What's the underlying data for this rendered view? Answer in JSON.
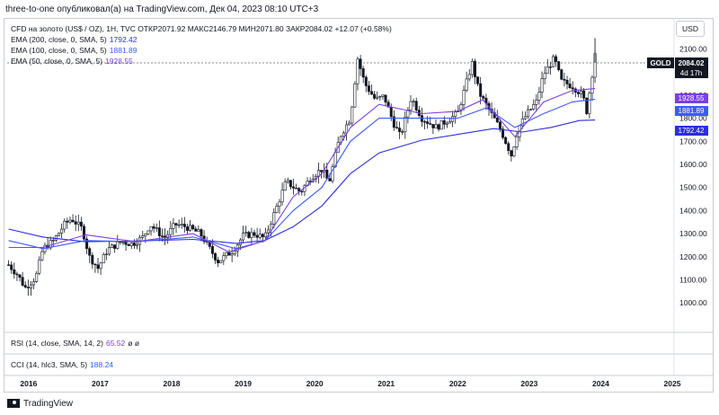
{
  "header": {
    "topline": "three-to-one опубликовал(а) на TradingView.com, Дек 04, 2023 08:10 UTC+3"
  },
  "legend": {
    "main": "CFD на золото (US$ / OZ), 1Н, TVC  ОТКР2071.92  МАКС2146.79  МИН2071.80  ЗАКР2084.02  +12.07 (+0.58%)",
    "ema200_label": "EMA (200, close, 0, SMA, 5)",
    "ema200_value": "1792.42",
    "ema100_label": "EMA (100, close, 0, SMA, 5)",
    "ema100_value": "1881.89",
    "ema50_label": "EMA (50, close, 0, SMA, 5)",
    "ema50_value": "1928.55",
    "rsi_label": "RSI (14, close, SMA, 14, 2)",
    "rsi_value": "65.52",
    "rsi_extra": "ø  ø",
    "cci_label": "CCI (14, hlc3, SMA, 5)",
    "cci_value": "188.24"
  },
  "currency_button": "USD",
  "price_tag": {
    "symbol": "GOLD",
    "price": "2084.02",
    "countdown": "4d 17h"
  },
  "footer": {
    "brand": "TradingView"
  },
  "colors": {
    "ema200": "#2a2ee0",
    "ema100": "#3d5afe",
    "ema50": "#7b3fe4",
    "candles": "#131722",
    "tag_bg": "#131722"
  },
  "chart_data": {
    "type": "candlestick",
    "title": "CFD на золото (US$ / OZ), 1Н, TVC",
    "ylim": [
      880,
      2180
    ],
    "y_ticks": [
      1000,
      1100,
      1200,
      1300,
      1400,
      1500,
      1600,
      1700,
      1800,
      1900,
      2000,
      2100
    ],
    "y_tick_labels": [
      "1000.00",
      "1100.00",
      "1200.00",
      "1300.00",
      "1400.00",
      "1500.00",
      "1600.00",
      "1700.00",
      "1800.00",
      "1900.00",
      "2000.00",
      "2100.00"
    ],
    "x_ticks": [
      "2016",
      "2017",
      "2018",
      "2019",
      "2020",
      "2021",
      "2022",
      "2023",
      "2024",
      "2025"
    ],
    "x_range": [
      2015.7,
      2025.0
    ],
    "close_path": [
      [
        2015.72,
        1165
      ],
      [
        2015.85,
        1120
      ],
      [
        2015.95,
        1065
      ],
      [
        2016.1,
        1110
      ],
      [
        2016.2,
        1235
      ],
      [
        2016.35,
        1270
      ],
      [
        2016.5,
        1340
      ],
      [
        2016.6,
        1365
      ],
      [
        2016.75,
        1320
      ],
      [
        2016.85,
        1200
      ],
      [
        2016.97,
        1150
      ],
      [
        2017.1,
        1230
      ],
      [
        2017.3,
        1265
      ],
      [
        2017.45,
        1255
      ],
      [
        2017.6,
        1285
      ],
      [
        2017.7,
        1340
      ],
      [
        2017.9,
        1280
      ],
      [
        2018.05,
        1340
      ],
      [
        2018.2,
        1330
      ],
      [
        2018.4,
        1300
      ],
      [
        2018.55,
        1225
      ],
      [
        2018.65,
        1180
      ],
      [
        2018.85,
        1225
      ],
      [
        2019.0,
        1290
      ],
      [
        2019.15,
        1300
      ],
      [
        2019.3,
        1280
      ],
      [
        2019.45,
        1400
      ],
      [
        2019.6,
        1525
      ],
      [
        2019.8,
        1480
      ],
      [
        2019.95,
        1545
      ],
      [
        2020.1,
        1580
      ],
      [
        2020.2,
        1520
      ],
      [
        2020.35,
        1720
      ],
      [
        2020.5,
        1800
      ],
      [
        2020.6,
        2060
      ],
      [
        2020.7,
        1950
      ],
      [
        2020.85,
        1880
      ],
      [
        2020.97,
        1895
      ],
      [
        2021.1,
        1780
      ],
      [
        2021.2,
        1720
      ],
      [
        2021.35,
        1890
      ],
      [
        2021.5,
        1800
      ],
      [
        2021.7,
        1760
      ],
      [
        2021.85,
        1790
      ],
      [
        2022.0,
        1820
      ],
      [
        2022.2,
        2040
      ],
      [
        2022.3,
        1910
      ],
      [
        2022.45,
        1830
      ],
      [
        2022.6,
        1750
      ],
      [
        2022.75,
        1640
      ],
      [
        2022.85,
        1760
      ],
      [
        2022.97,
        1820
      ],
      [
        2023.1,
        1870
      ],
      [
        2023.2,
        1990
      ],
      [
        2023.35,
        2060
      ],
      [
        2023.45,
        1960
      ],
      [
        2023.6,
        1940
      ],
      [
        2023.75,
        1900
      ],
      [
        2023.8,
        1825
      ],
      [
        2023.88,
        1990
      ],
      [
        2023.92,
        2084
      ]
    ],
    "series": [
      {
        "name": "EMA (200, close, 0, SMA, 5)",
        "last": 1792.42,
        "points": [
          [
            2015.72,
            1320
          ],
          [
            2016.2,
            1285
          ],
          [
            2016.8,
            1265
          ],
          [
            2017.5,
            1268
          ],
          [
            2018.3,
            1275
          ],
          [
            2018.9,
            1258
          ],
          [
            2019.3,
            1270
          ],
          [
            2019.7,
            1330
          ],
          [
            2020.1,
            1420
          ],
          [
            2020.5,
            1560
          ],
          [
            2020.9,
            1650
          ],
          [
            2021.5,
            1705
          ],
          [
            2022.0,
            1730
          ],
          [
            2022.5,
            1755
          ],
          [
            2022.9,
            1740
          ],
          [
            2023.3,
            1760
          ],
          [
            2023.7,
            1790
          ],
          [
            2023.92,
            1792.42
          ]
        ]
      },
      {
        "name": "EMA (100, close, 0, SMA, 5)",
        "last": 1881.89,
        "points": [
          [
            2015.72,
            1270
          ],
          [
            2016.2,
            1235
          ],
          [
            2016.8,
            1270
          ],
          [
            2017.5,
            1265
          ],
          [
            2018.3,
            1285
          ],
          [
            2018.9,
            1235
          ],
          [
            2019.3,
            1268
          ],
          [
            2019.7,
            1400
          ],
          [
            2020.1,
            1500
          ],
          [
            2020.5,
            1700
          ],
          [
            2020.9,
            1800
          ],
          [
            2021.5,
            1800
          ],
          [
            2022.0,
            1800
          ],
          [
            2022.4,
            1845
          ],
          [
            2022.8,
            1760
          ],
          [
            2023.2,
            1820
          ],
          [
            2023.6,
            1870
          ],
          [
            2023.92,
            1881.89
          ]
        ]
      },
      {
        "name": "EMA (50, close, 0, SMA, 5)",
        "last": 1928.55,
        "points": [
          [
            2015.72,
            1240
          ],
          [
            2016.2,
            1240
          ],
          [
            2016.8,
            1295
          ],
          [
            2017.5,
            1265
          ],
          [
            2018.3,
            1300
          ],
          [
            2018.8,
            1220
          ],
          [
            2019.3,
            1270
          ],
          [
            2019.7,
            1460
          ],
          [
            2020.1,
            1560
          ],
          [
            2020.5,
            1760
          ],
          [
            2020.9,
            1860
          ],
          [
            2021.5,
            1820
          ],
          [
            2022.0,
            1830
          ],
          [
            2022.35,
            1880
          ],
          [
            2022.8,
            1720
          ],
          [
            2023.2,
            1870
          ],
          [
            2023.6,
            1920
          ],
          [
            2023.92,
            1928.55
          ]
        ]
      }
    ],
    "last_price": 2084.02
  }
}
